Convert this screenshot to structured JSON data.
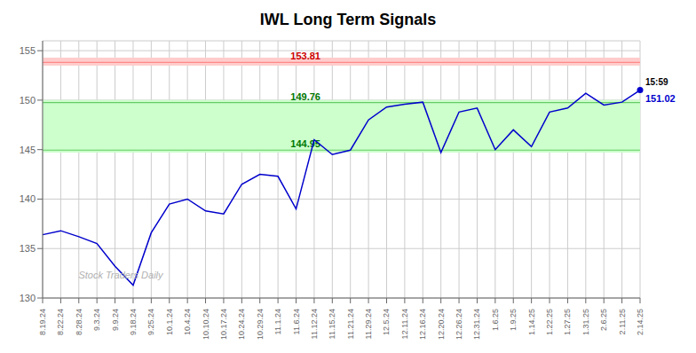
{
  "chart_data": {
    "type": "line",
    "title": "IWL Long Term Signals",
    "categories": [
      "8.19.24",
      "8.22.24",
      "8.28.24",
      "9.3.24",
      "9.9.24",
      "9.18.24",
      "9.25.24",
      "10.1.24",
      "10.4.24",
      "10.10.24",
      "10.17.24",
      "10.24.24",
      "10.29.24",
      "11.1.24",
      "11.6.24",
      "11.12.24",
      "11.15.24",
      "11.21.24",
      "11.29.24",
      "12.5.24",
      "12.11.24",
      "12.16.24",
      "12.20.24",
      "12.26.24",
      "12.31.24",
      "1.6.25",
      "1.9.25",
      "1.14.25",
      "1.22.25",
      "1.27.25",
      "1.31.25",
      "2.6.25",
      "2.11.25",
      "2.14.25"
    ],
    "values": [
      136.4,
      136.8,
      136.2,
      135.5,
      133.2,
      131.3,
      136.6,
      139.5,
      140.0,
      138.8,
      138.5,
      141.5,
      142.5,
      142.3,
      139.0,
      146.0,
      144.5,
      144.95,
      148.0,
      149.3,
      149.6,
      149.8,
      144.7,
      148.8,
      149.2,
      145.0,
      147.0,
      145.3,
      148.8,
      149.2,
      150.7,
      149.5,
      149.8,
      151.02
    ],
    "color": "#0000cc",
    "ylim": [
      130,
      156
    ],
    "yticks": [
      130,
      135,
      140,
      145,
      150,
      155
    ],
    "grid": true,
    "bands": [
      {
        "from": 153.5,
        "to": 154.3,
        "color": "#ffcccc"
      },
      {
        "from": 144.7,
        "to": 150.01,
        "color": "#ccffcc"
      }
    ],
    "reference_lines": [
      {
        "value": 153.81,
        "label": "153.81",
        "color": "#ff8888",
        "label_color": "#cc0000"
      },
      {
        "value": 149.76,
        "label": "149.76",
        "color": "#66cc66",
        "label_color": "#007700"
      },
      {
        "value": 144.95,
        "label": "144.95",
        "color": "#66cc66",
        "label_color": "#007700"
      }
    ],
    "last_point": {
      "time": "15:59",
      "value": 151.02
    },
    "watermark": "Stock Traders Daily"
  }
}
